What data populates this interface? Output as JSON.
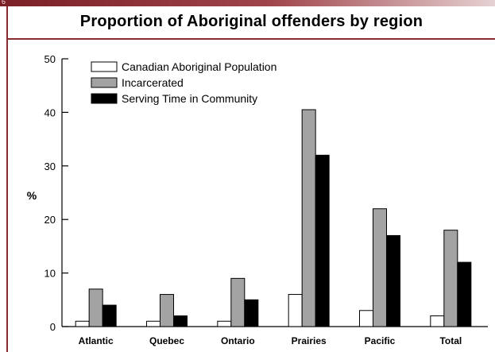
{
  "header": {
    "band_label": "6"
  },
  "chart_data": {
    "type": "bar",
    "title": "Proportion of Aboriginal offenders by region",
    "xlabel": "",
    "ylabel": "%",
    "ylim": [
      0,
      50
    ],
    "yticks": [
      "0",
      "10",
      "20",
      "30",
      "40",
      "50"
    ],
    "categories": [
      "Atlantic",
      "Quebec",
      "Ontario",
      "Prairies",
      "Pacific",
      "Total"
    ],
    "series": [
      {
        "name": "Canadian Aboriginal Population",
        "color": "#ffffff",
        "values": [
          1,
          1,
          1,
          6,
          3,
          2
        ]
      },
      {
        "name": "Incarcerated",
        "color": "#a3a3a3",
        "values": [
          7,
          6,
          9,
          40.5,
          22,
          18
        ]
      },
      {
        "name": "Serving Time in Community",
        "color": "#000000",
        "values": [
          4,
          2,
          5,
          32,
          17,
          12
        ]
      }
    ],
    "legend_position": "top-left",
    "grid": false
  }
}
